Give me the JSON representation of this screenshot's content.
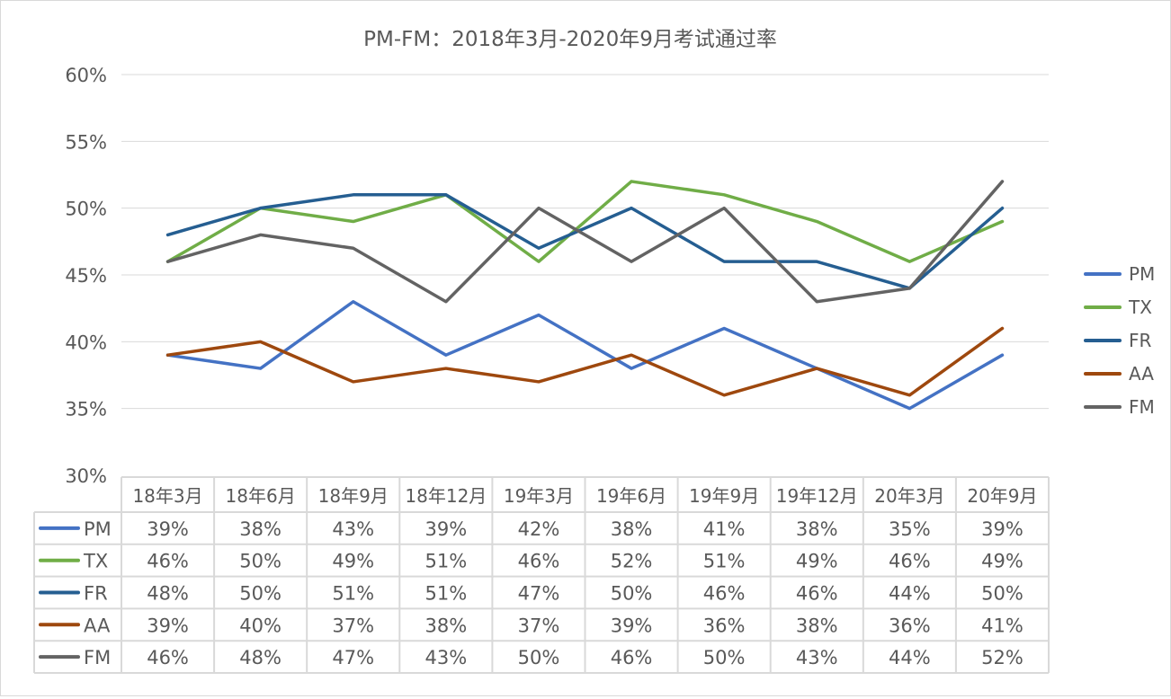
{
  "chart_data": {
    "type": "line",
    "title": "PM-FM：2018年3月-2020年9月考试通过率",
    "categories": [
      "18年3月",
      "18年6月",
      "18年9月",
      "18年12月",
      "19年3月",
      "19年6月",
      "19年9月",
      "19年12月",
      "20年3月",
      "20年9月"
    ],
    "ylim": [
      0.3,
      0.6
    ],
    "yticks": [
      "30%",
      "35%",
      "40%",
      "45%",
      "50%",
      "55%",
      "60%"
    ],
    "ytick_values": [
      0.3,
      0.35,
      0.4,
      0.45,
      0.5,
      0.55,
      0.6
    ],
    "grid": true,
    "legend_position": "right",
    "data_table": true,
    "series": [
      {
        "name": "PM",
        "color": "#4472C4",
        "values": [
          0.39,
          0.38,
          0.43,
          0.39,
          0.42,
          0.38,
          0.41,
          0.38,
          0.35,
          0.39
        ],
        "labels": [
          "39%",
          "38%",
          "43%",
          "39%",
          "42%",
          "38%",
          "41%",
          "38%",
          "35%",
          "39%"
        ]
      },
      {
        "name": "TX",
        "color": "#70AD47",
        "values": [
          0.46,
          0.5,
          0.49,
          0.51,
          0.46,
          0.52,
          0.51,
          0.49,
          0.46,
          0.49
        ],
        "labels": [
          "46%",
          "50%",
          "49%",
          "51%",
          "46%",
          "52%",
          "51%",
          "49%",
          "46%",
          "49%"
        ]
      },
      {
        "name": "FR",
        "color": "#255E91",
        "values": [
          0.48,
          0.5,
          0.51,
          0.51,
          0.47,
          0.5,
          0.46,
          0.46,
          0.44,
          0.5
        ],
        "labels": [
          "48%",
          "50%",
          "51%",
          "51%",
          "47%",
          "50%",
          "46%",
          "46%",
          "44%",
          "50%"
        ]
      },
      {
        "name": "AA",
        "color": "#9E480E",
        "values": [
          0.39,
          0.4,
          0.37,
          0.38,
          0.37,
          0.39,
          0.36,
          0.38,
          0.36,
          0.41
        ],
        "labels": [
          "39%",
          "40%",
          "37%",
          "38%",
          "37%",
          "39%",
          "36%",
          "38%",
          "36%",
          "41%"
        ]
      },
      {
        "name": "FM",
        "color": "#636363",
        "values": [
          0.46,
          0.48,
          0.47,
          0.43,
          0.5,
          0.46,
          0.5,
          0.43,
          0.44,
          0.52
        ],
        "labels": [
          "46%",
          "48%",
          "47%",
          "43%",
          "50%",
          "46%",
          "50%",
          "43%",
          "44%",
          "52%"
        ]
      }
    ]
  }
}
